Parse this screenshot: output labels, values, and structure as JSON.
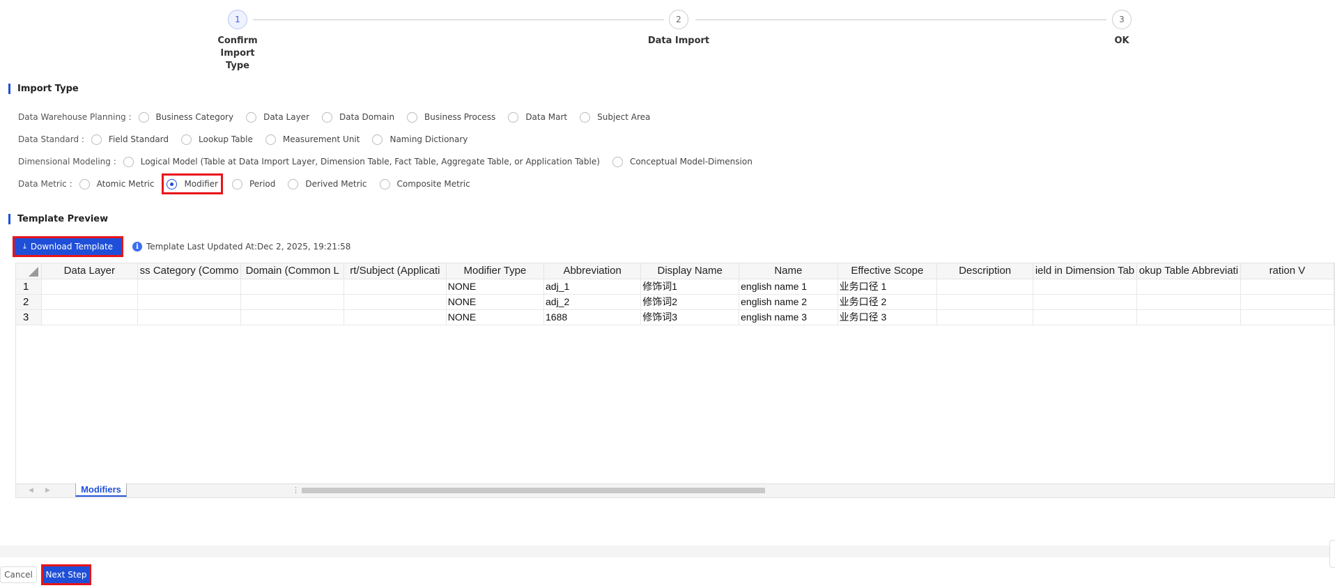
{
  "stepper": {
    "steps": [
      {
        "number": "1",
        "label": "Confirm Import Type",
        "active": true
      },
      {
        "number": "2",
        "label": "Data Import",
        "active": false
      },
      {
        "number": "3",
        "label": "OK",
        "active": false
      }
    ]
  },
  "import_type": {
    "title": "Import Type",
    "groups": [
      {
        "label": "Data Warehouse Planning :",
        "options": [
          "Business Category",
          "Data Layer",
          "Data Domain",
          "Business Process",
          "Data Mart",
          "Subject Area"
        ]
      },
      {
        "label": "Data Standard :",
        "options": [
          "Field Standard",
          "Lookup Table",
          "Measurement Unit",
          "Naming Dictionary"
        ]
      },
      {
        "label": "Dimensional Modeling :",
        "options": [
          "Logical Model (Table at Data Import Layer, Dimension Table, Fact Table, Aggregate Table, or Application Table)",
          "Conceptual Model-Dimension"
        ]
      },
      {
        "label": "Data Metric :",
        "options": [
          "Atomic Metric",
          "Modifier",
          "Period",
          "Derived Metric",
          "Composite Metric"
        ]
      }
    ],
    "selected": "Modifier"
  },
  "template_preview": {
    "title": "Template Preview",
    "download_label": "Download Template",
    "download_icon": "download-icon",
    "info_icon": "info-icon",
    "updated_text": "Template Last Updated At:Dec 2, 2025, 19:21:58"
  },
  "sheet": {
    "columns": [
      "Data Layer",
      "ss Category (Commo",
      "Domain (Common L",
      "rt/Subject (Applicati",
      "Modifier Type",
      "Abbreviation",
      "Display Name",
      "Name",
      "Effective Scope",
      "Description",
      "ield in Dimension Tab",
      "okup Table Abbreviati",
      "ration V"
    ],
    "rows": [
      {
        "num": "1",
        "cells": [
          "",
          "",
          "",
          "",
          "NONE",
          "adj_1",
          "修饰词1",
          "english name 1",
          "业务口径 1",
          "",
          "",
          "",
          ""
        ]
      },
      {
        "num": "2",
        "cells": [
          "",
          "",
          "",
          "",
          "NONE",
          "adj_2",
          "修饰词2",
          "english name 2",
          "业务口径 2",
          "",
          "",
          "",
          ""
        ]
      },
      {
        "num": "3",
        "cells": [
          "",
          "",
          "",
          "",
          "NONE",
          "1688",
          "修饰词3",
          "english name 3",
          "业务口径 3",
          "",
          "",
          "",
          ""
        ]
      }
    ],
    "sheet_tab": "Modifiers"
  },
  "footer": {
    "cancel_label": "Cancel",
    "next_label": "Next Step"
  },
  "colors": {
    "accent": "#1f4fd8",
    "highlight": "#e8141a"
  }
}
